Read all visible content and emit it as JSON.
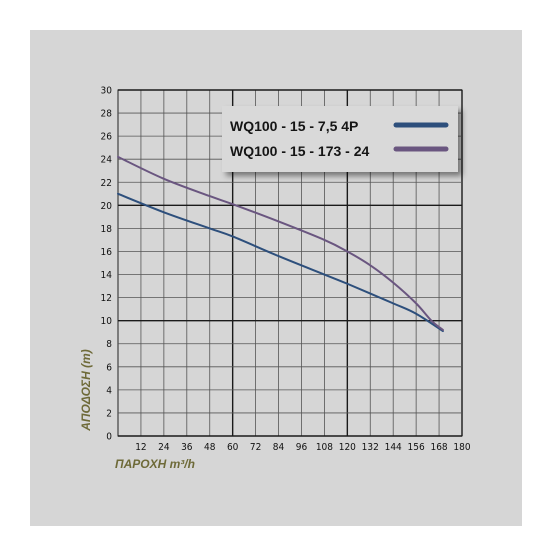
{
  "chart_data": {
    "type": "line",
    "xlabel": "ΠΑΡΟΧΗ m³/h",
    "ylabel": "ΑΠΟΔΟΣΗ (m)",
    "xlim": [
      0,
      180
    ],
    "ylim": [
      0,
      30
    ],
    "x_ticks": [
      12,
      24,
      36,
      48,
      60,
      72,
      84,
      96,
      108,
      120,
      132,
      144,
      156,
      168,
      180
    ],
    "y_ticks": [
      0,
      2,
      4,
      6,
      8,
      10,
      12,
      14,
      16,
      18,
      20,
      22,
      24,
      26,
      28,
      30
    ],
    "grid": true,
    "legend_position": "top-right",
    "series": [
      {
        "name": "WQ100 - 15 - 7,5 4P",
        "color": "#2d4f7c",
        "points": [
          [
            0,
            21
          ],
          [
            24,
            19.4
          ],
          [
            48,
            18.0
          ],
          [
            60,
            17.3
          ],
          [
            84,
            15.6
          ],
          [
            108,
            14.0
          ],
          [
            120,
            13.2
          ],
          [
            144,
            11.5
          ],
          [
            156,
            10.6
          ],
          [
            170,
            9.1
          ]
        ]
      },
      {
        "name": "WQ100 - 15 - 173 - 24",
        "color": "#6a5680",
        "points": [
          [
            0,
            24.2
          ],
          [
            24,
            22.3
          ],
          [
            48,
            20.8
          ],
          [
            60,
            20.1
          ],
          [
            84,
            18.6
          ],
          [
            108,
            17.0
          ],
          [
            120,
            16.0
          ],
          [
            132,
            14.8
          ],
          [
            144,
            13.3
          ],
          [
            156,
            11.5
          ],
          [
            164,
            10.0
          ],
          [
            170,
            9.2
          ]
        ]
      }
    ]
  }
}
